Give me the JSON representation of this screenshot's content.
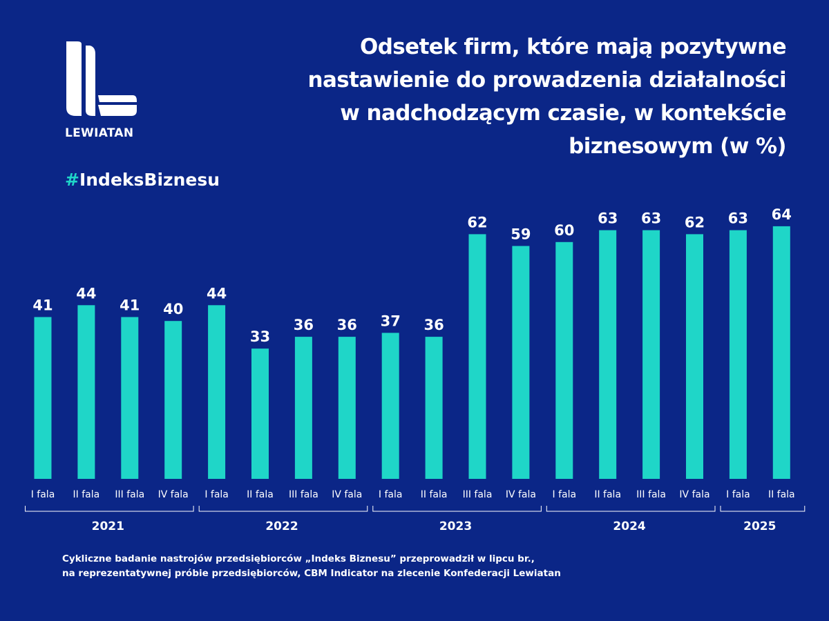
{
  "brand": {
    "name": "LEWIATAN",
    "hashtag_symbol": "#",
    "hashtag_text": "IndeksBiznesu"
  },
  "title_lines": [
    "Odsetek firm, które mają pozytywne",
    "nastawienie do prowadzenia działalności",
    "w nadchodzącym czasie, w kontekście",
    "biznesowym (w %)"
  ],
  "footnote_lines": [
    "Cykliczne badanie nastrojów przedsiębiorców „Indeks Biznesu”  przeprowadził w lipcu br.,",
    "na reprezentatywnej próbie przedsiębiorców, CBM Indicator na zlecenie Konfederacji Lewiatan"
  ],
  "colors": {
    "background": "#0b2687",
    "bar": "#1fd6c8",
    "text": "#ffffff",
    "accent": "#1fd6c8"
  },
  "chart_data": {
    "type": "bar",
    "title": "Odsetek firm, które mają pozytywne nastawienie do prowadzenia działalności w nadchodzącym czasie, w kontekście biznesowym (w %)",
    "categories": [
      "I fala",
      "II fala",
      "III fala",
      "IV fala",
      "I fala",
      "II fala",
      "III fala",
      "IV fala",
      "I fala",
      "II fala",
      "III fala",
      "IV fala",
      "I fala",
      "II fala",
      "III fala",
      "IV fala",
      "I fala",
      "II fala"
    ],
    "values": [
      41,
      44,
      41,
      40,
      44,
      33,
      36,
      36,
      37,
      36,
      62,
      59,
      60,
      63,
      63,
      62,
      63,
      64
    ],
    "groups": [
      {
        "label": "2021",
        "count": 4
      },
      {
        "label": "2022",
        "count": 4
      },
      {
        "label": "2023",
        "count": 4
      },
      {
        "label": "2024",
        "count": 4
      },
      {
        "label": "2025",
        "count": 2
      }
    ],
    "ylim": [
      0,
      70
    ],
    "grid": false,
    "data_labels": true
  }
}
